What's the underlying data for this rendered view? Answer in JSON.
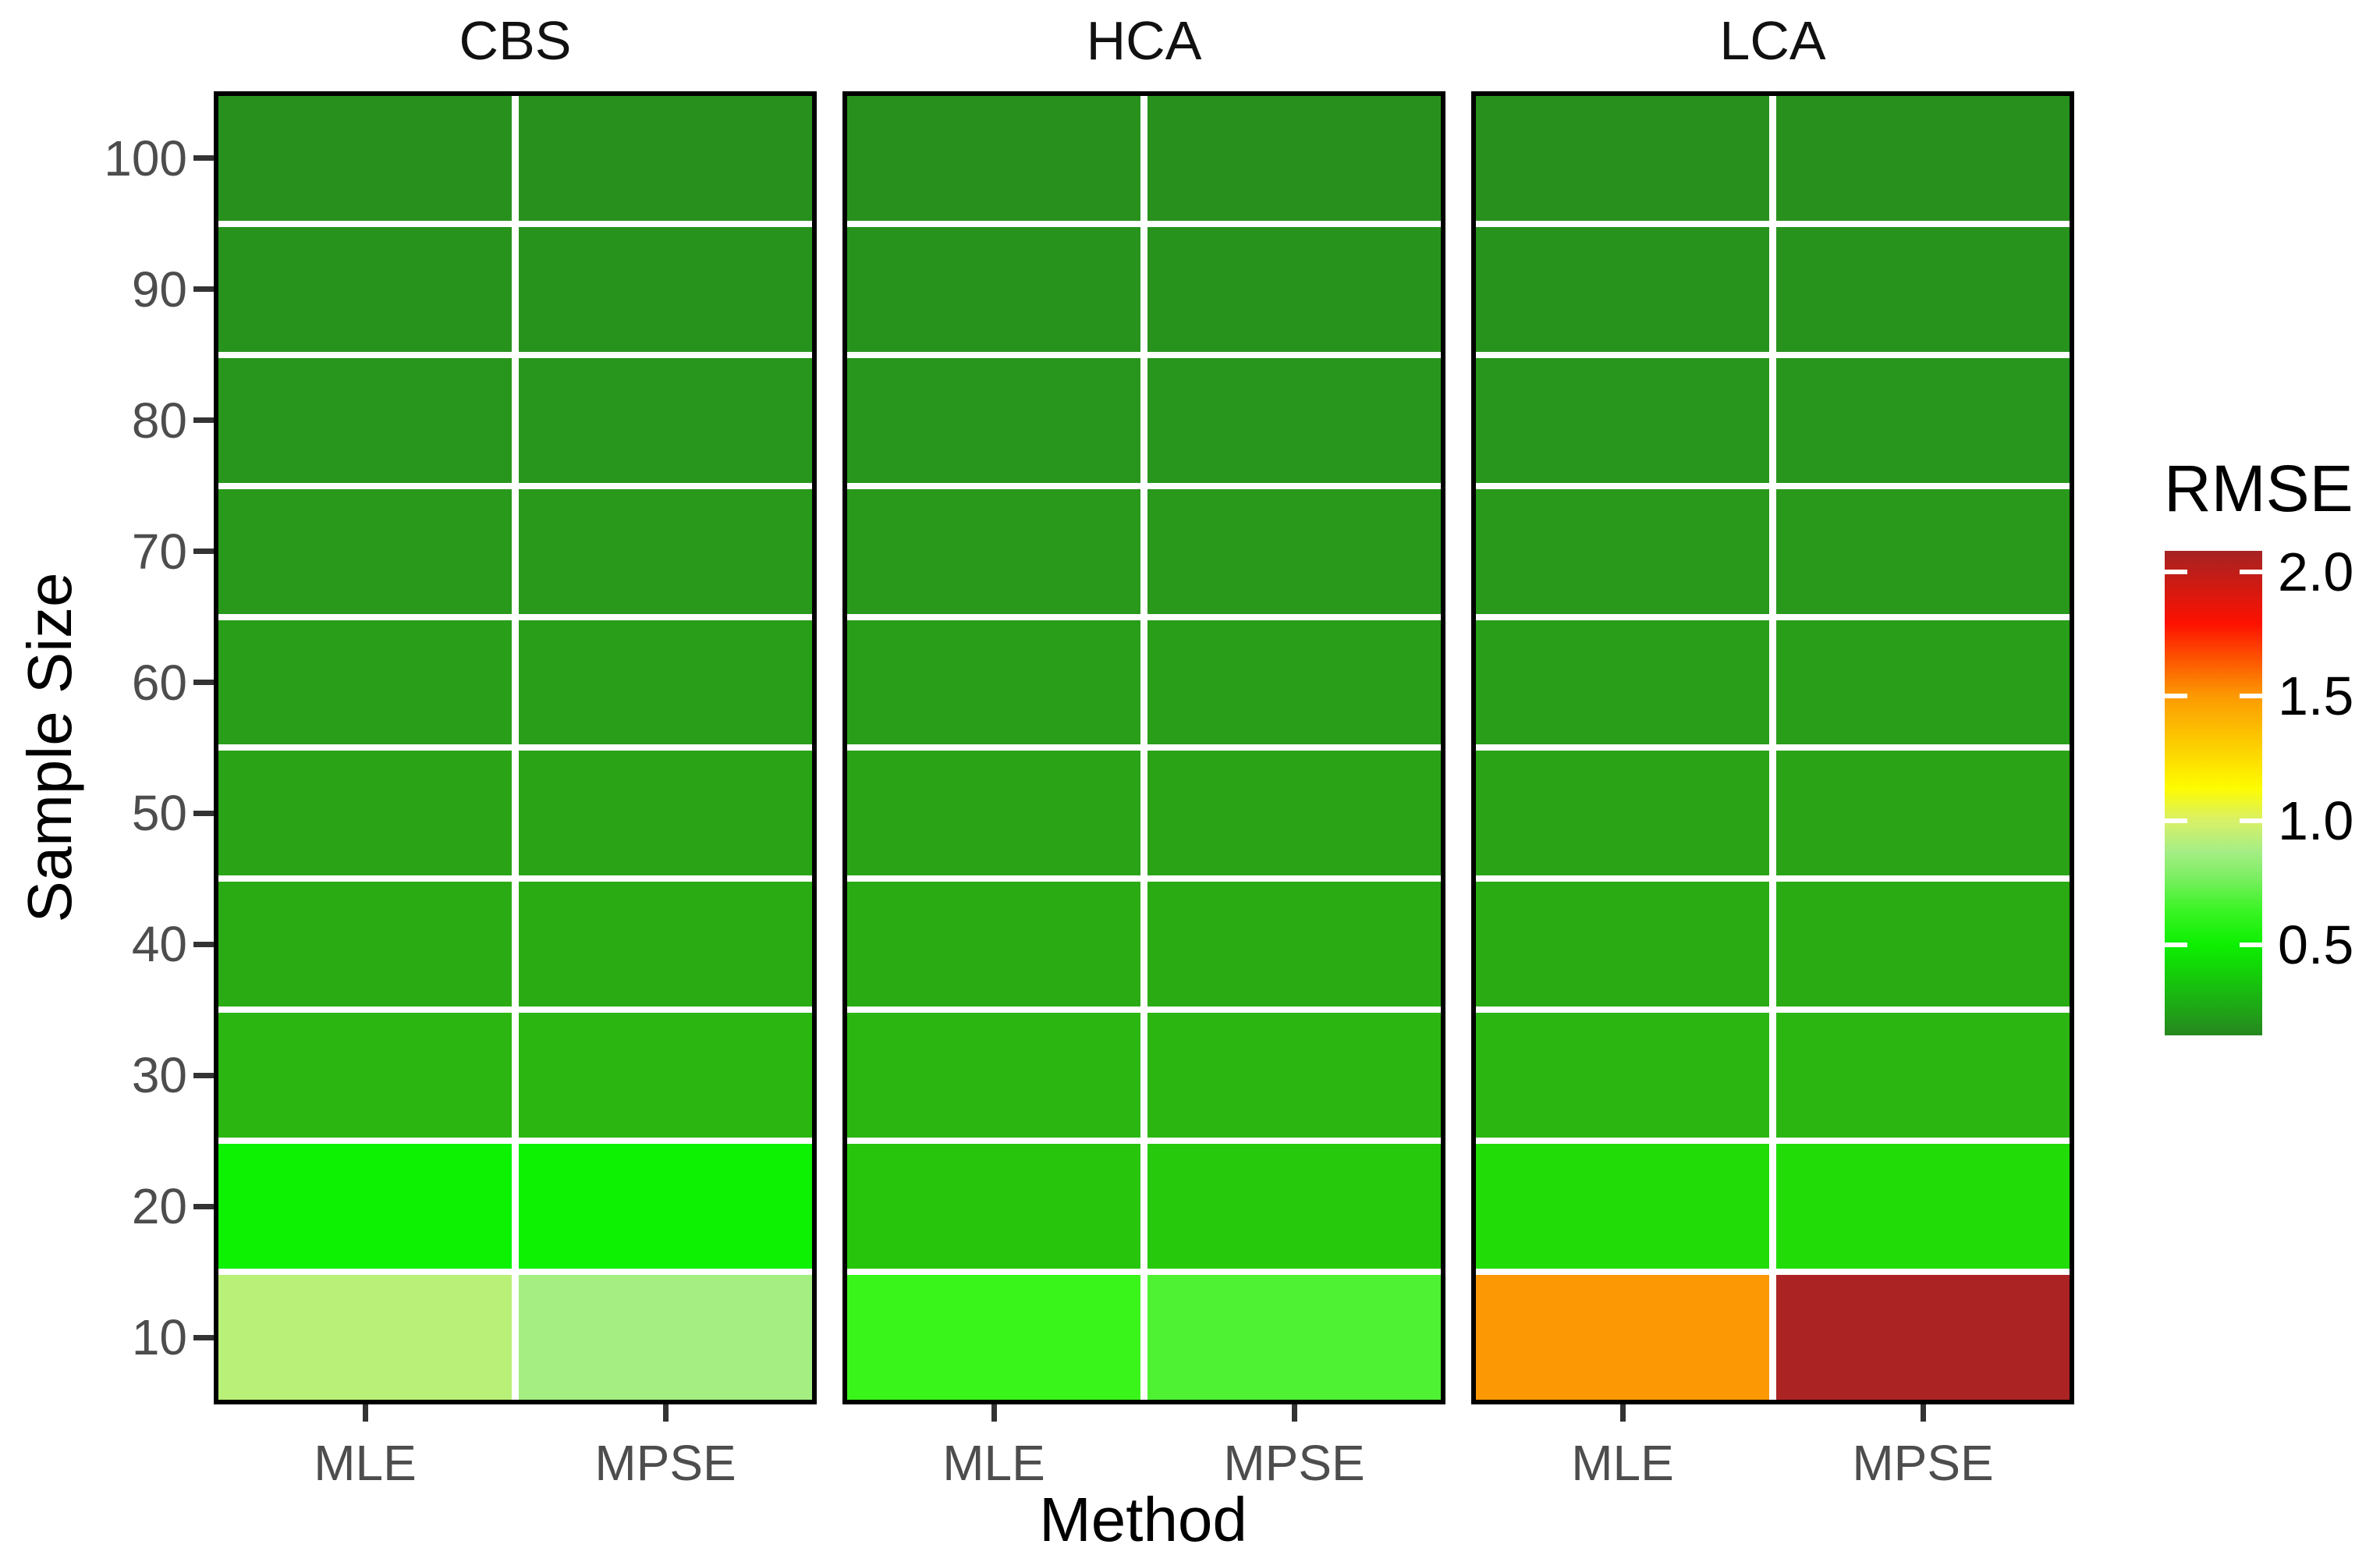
{
  "figure": {
    "y_axis_title": "Sample Size",
    "x_axis_title": "Method",
    "legend_title": "RMSE"
  },
  "chart_data": {
    "type": "heatmap",
    "title": "",
    "xlabel": "Method",
    "ylabel": "Sample Size",
    "facet_titles": [
      "CBS",
      "HCA",
      "LCA"
    ],
    "x_categories": [
      "MLE",
      "MPSE"
    ],
    "y_categories": [
      100,
      90,
      80,
      70,
      60,
      50,
      40,
      30,
      20,
      10
    ],
    "legend": {
      "title": "RMSE",
      "ticks": [
        2.0,
        1.5,
        1.0,
        0.5
      ],
      "tick_labels": [
        "2.0",
        "1.5",
        "1.0",
        "0.5"
      ],
      "domain": [
        0.135,
        2.085
      ],
      "position": "right",
      "gradient": [
        {
          "pos": 0,
          "color": "#26871f"
        },
        {
          "pos": 18.7,
          "color": "#0cf000"
        },
        {
          "pos": 26,
          "color": "#3cf426"
        },
        {
          "pos": 33,
          "color": "#7fee66"
        },
        {
          "pos": 38,
          "color": "#a5ee85"
        },
        {
          "pos": 44.4,
          "color": "#d9f067"
        },
        {
          "pos": 51,
          "color": "#fdfc00"
        },
        {
          "pos": 70,
          "color": "#fc9a02"
        },
        {
          "pos": 85,
          "color": "#fd1100"
        },
        {
          "pos": 100,
          "color": "#a52323"
        }
      ]
    },
    "panels": [
      {
        "title": "CBS",
        "series": [
          {
            "name": "MLE",
            "values": [
              0.17,
              0.18,
              0.19,
              0.2,
              0.22,
              0.23,
              0.26,
              0.29,
              0.47,
              0.88
            ],
            "colors": [
              "#28911e",
              "#27931d",
              "#28961c",
              "#28991b",
              "#299e19",
              "#2aa317",
              "#2aab14",
              "#2bb611",
              "#0cf202",
              "#b9f077"
            ]
          },
          {
            "name": "MPSE",
            "values": [
              0.17,
              0.18,
              0.19,
              0.2,
              0.22,
              0.23,
              0.26,
              0.29,
              0.47,
              0.8
            ],
            "colors": [
              "#28911e",
              "#27931d",
              "#28961c",
              "#28991b",
              "#299e19",
              "#2aa317",
              "#2aab14",
              "#2bb611",
              "#0cf202",
              "#a4ee82"
            ]
          }
        ]
      },
      {
        "title": "HCA",
        "series": [
          {
            "name": "MLE",
            "values": [
              0.17,
              0.18,
              0.19,
              0.2,
              0.22,
              0.23,
              0.26,
              0.29,
              0.41,
              0.54
            ],
            "colors": [
              "#28911e",
              "#27931d",
              "#28961c",
              "#28991b",
              "#299e19",
              "#2aa317",
              "#2aab14",
              "#2bb611",
              "#27c50c",
              "#3af519"
            ]
          },
          {
            "name": "MPSE",
            "values": [
              0.17,
              0.18,
              0.19,
              0.2,
              0.22,
              0.23,
              0.26,
              0.29,
              0.41,
              0.58
            ],
            "colors": [
              "#28911e",
              "#27931d",
              "#28961c",
              "#28991b",
              "#299e19",
              "#2aa317",
              "#2aab14",
              "#2bb611",
              "#26c90b",
              "#4ef232"
            ]
          }
        ]
      },
      {
        "title": "LCA",
        "series": [
          {
            "name": "MLE",
            "values": [
              0.17,
              0.18,
              0.19,
              0.2,
              0.22,
              0.23,
              0.26,
              0.29,
              0.44,
              1.5
            ],
            "colors": [
              "#28911e",
              "#27931d",
              "#28961c",
              "#28991b",
              "#299e19",
              "#2aa317",
              "#2aab14",
              "#2bb611",
              "#22dc07",
              "#fb9803"
            ]
          },
          {
            "name": "MPSE",
            "values": [
              0.17,
              0.18,
              0.19,
              0.2,
              0.22,
              0.23,
              0.26,
              0.29,
              0.44,
              2.05
            ],
            "colors": [
              "#28911e",
              "#27931d",
              "#28961c",
              "#28991b",
              "#299e19",
              "#2aa317",
              "#2aab14",
              "#2bb611",
              "#22dc07",
              "#ac2323"
            ]
          }
        ]
      }
    ]
  }
}
